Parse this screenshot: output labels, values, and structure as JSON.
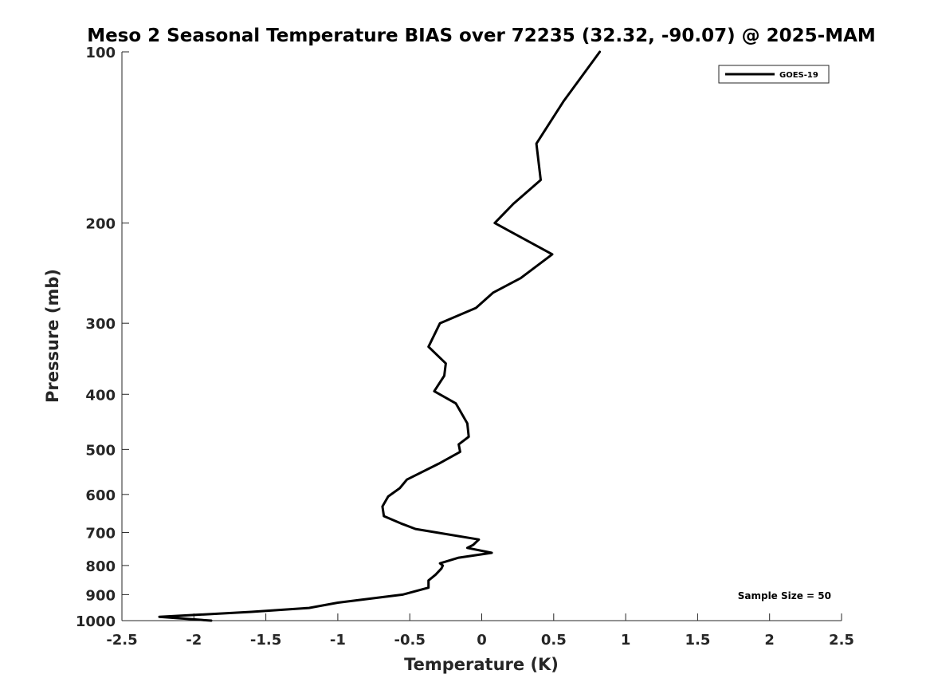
{
  "chart_data": {
    "type": "line",
    "title": "Meso 2 Seasonal Temperature BIAS over 72235 (32.32, -90.07) @ 2025-MAM",
    "xlabel": "Temperature (K)",
    "ylabel": "Pressure (mb)",
    "xlim": [
      -2.5,
      2.5
    ],
    "ylim": [
      1000,
      100
    ],
    "yscale": "log",
    "yreverse": true,
    "xticks": [
      -2.5,
      -2,
      -1.5,
      -1,
      -0.5,
      0,
      0.5,
      1,
      1.5,
      2,
      2.5
    ],
    "xtick_labels": [
      "-2.5",
      "-2",
      "-1.5",
      "-1",
      "-0.5",
      "0",
      "0.5",
      "1",
      "1.5",
      "2",
      "2.5"
    ],
    "yticks": [
      100,
      200,
      300,
      400,
      500,
      600,
      700,
      800,
      900,
      1000
    ],
    "ytick_labels": [
      "100",
      "200",
      "300",
      "400",
      "500",
      "600",
      "700",
      "800",
      "900",
      "1000"
    ],
    "grid": false,
    "legend_position": "top-right",
    "series": [
      {
        "name": "GOES-19",
        "color": "#000000",
        "x": [
          0.82,
          0.57,
          0.38,
          0.41,
          0.22,
          0.09,
          0.49,
          0.27,
          0.08,
          -0.04,
          -0.29,
          -0.37,
          -0.25,
          -0.26,
          -0.33,
          -0.18,
          -0.1,
          -0.09,
          -0.16,
          -0.15,
          -0.3,
          -0.52,
          -0.57,
          -0.65,
          -0.69,
          -0.68,
          -0.56,
          -0.46,
          -0.31,
          -0.02,
          -0.06,
          -0.1,
          0.07,
          -0.16,
          -0.29,
          -0.27,
          -0.28,
          -0.32,
          -0.37,
          -0.37,
          -0.55,
          -1.0,
          -1.2,
          -1.6,
          -2.24,
          -1.88
        ],
        "y": [
          100,
          122,
          145,
          168,
          185,
          200,
          227,
          250,
          265,
          282,
          300,
          330,
          353,
          371,
          395,
          415,
          450,
          475,
          490,
          505,
          530,
          565,
          585,
          605,
          630,
          655,
          675,
          690,
          700,
          720,
          736,
          745,
          760,
          775,
          793,
          800,
          810,
          830,
          850,
          875,
          900,
          930,
          950,
          965,
          985,
          1000
        ]
      }
    ],
    "annotations": [
      "Sample Size = 50"
    ]
  }
}
